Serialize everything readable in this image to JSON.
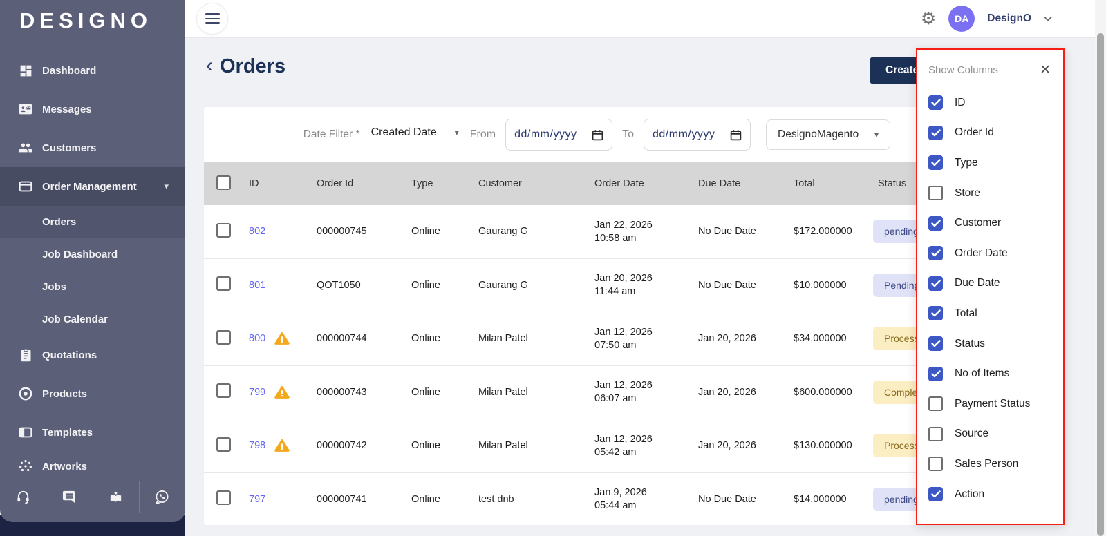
{
  "brand": {
    "logo": "DESIGNO"
  },
  "sidebar": {
    "items": [
      {
        "label": "Dashboard",
        "icon": "dashboard-icon"
      },
      {
        "label": "Messages",
        "icon": "messages-icon"
      },
      {
        "label": "Customers",
        "icon": "customers-icon"
      },
      {
        "label": "Order Management",
        "icon": "order-management-icon",
        "expanded": true
      },
      {
        "label": "Quotations",
        "icon": "quotations-icon"
      },
      {
        "label": "Products",
        "icon": "products-icon"
      },
      {
        "label": "Templates",
        "icon": "templates-icon"
      },
      {
        "label": "Artworks",
        "icon": "artworks-icon"
      }
    ],
    "submenu": [
      {
        "label": "Orders",
        "active": true
      },
      {
        "label": "Job Dashboard",
        "active": false
      },
      {
        "label": "Jobs",
        "active": false
      },
      {
        "label": "Job Calendar",
        "active": false
      }
    ],
    "help_icons": [
      "headset-icon",
      "chat-icon",
      "learning-icon",
      "whatsapp-icon"
    ]
  },
  "topbar": {
    "avatar_initials": "DA",
    "account_name": "DesignO"
  },
  "page": {
    "title": "Orders",
    "create_button": "Create"
  },
  "filters": {
    "date_filter_label": "Date Filter *",
    "date_filter_value": "Created Date",
    "from_label": "From",
    "from_placeholder": "dd/mm/yyyy",
    "to_label": "To",
    "to_placeholder": "dd/mm/yyyy",
    "store_value": "DesignoMagento"
  },
  "table": {
    "columns": [
      "ID",
      "Order Id",
      "Type",
      "Customer",
      "Order Date",
      "Due Date",
      "Total",
      "Status"
    ],
    "rows": [
      {
        "id": "802",
        "warning": false,
        "order_id": "000000745",
        "type": "Online",
        "customer": "Gaurang G",
        "order_date": "Jan 22, 2026",
        "order_time": "10:58 am",
        "due_date": "No Due Date",
        "total": "$172.000000",
        "status": "pending",
        "status_kind": "pending"
      },
      {
        "id": "801",
        "warning": false,
        "order_id": "QOT1050",
        "type": "Online",
        "customer": "Gaurang G",
        "order_date": "Jan 20, 2026",
        "order_time": "11:44 am",
        "due_date": "No Due Date",
        "total": "$10.000000",
        "status": "Pending",
        "status_kind": "pending"
      },
      {
        "id": "800",
        "warning": true,
        "order_id": "000000744",
        "type": "Online",
        "customer": "Milan Patel",
        "order_date": "Jan 12, 2026",
        "order_time": "07:50 am",
        "due_date": "Jan 20, 2026",
        "total": "$34.000000",
        "status": "Processing",
        "status_kind": "processing"
      },
      {
        "id": "799",
        "warning": true,
        "order_id": "000000743",
        "type": "Online",
        "customer": "Milan Patel",
        "order_date": "Jan 12, 2026",
        "order_time": "06:07 am",
        "due_date": "Jan 20, 2026",
        "total": "$600.000000",
        "status": "Completed",
        "status_kind": "processing"
      },
      {
        "id": "798",
        "warning": true,
        "order_id": "000000742",
        "type": "Online",
        "customer": "Milan Patel",
        "order_date": "Jan 12, 2026",
        "order_time": "05:42 am",
        "due_date": "Jan 20, 2026",
        "total": "$130.000000",
        "status": "Processing",
        "status_kind": "processing"
      },
      {
        "id": "797",
        "warning": false,
        "order_id": "000000741",
        "type": "Online",
        "customer": "test dnb",
        "order_date": "Jan 9, 2026",
        "order_time": "05:44 am",
        "due_date": "No Due Date",
        "total": "$14.000000",
        "status": "pending",
        "status_kind": "pending"
      }
    ]
  },
  "show_columns": {
    "title": "Show Columns",
    "items": [
      {
        "label": "ID",
        "checked": true
      },
      {
        "label": "Order Id",
        "checked": true
      },
      {
        "label": "Type",
        "checked": true
      },
      {
        "label": "Store",
        "checked": false
      },
      {
        "label": "Customer",
        "checked": true
      },
      {
        "label": "Order Date",
        "checked": true
      },
      {
        "label": "Due Date",
        "checked": true
      },
      {
        "label": "Total",
        "checked": true
      },
      {
        "label": "Status",
        "checked": true
      },
      {
        "label": "No of Items",
        "checked": true
      },
      {
        "label": "Payment Status",
        "checked": false
      },
      {
        "label": "Source",
        "checked": false
      },
      {
        "label": "Sales Person",
        "checked": false
      },
      {
        "label": "Action",
        "checked": true
      }
    ]
  },
  "colors": {
    "sidebar_bg": "#5b5f77",
    "sidebar_active": "#484c63",
    "sidebar_subactive": "#51556d",
    "navy": "#1b3156",
    "link_indigo": "#6467f2",
    "badge_ind_bg": "#e0e3f7",
    "badge_ind_tx": "#3a4784",
    "badge_amb_bg": "#fbeec3",
    "badge_amb_tx": "#8a6d1f",
    "cb_blue": "#3d57c5",
    "red": "#f51f16",
    "avatar": "#7b70f2",
    "warn": "#f5a81c",
    "header_bg": "#d6d6d6",
    "content_bg": "#f0f1f5",
    "strip": "#1d2342"
  }
}
